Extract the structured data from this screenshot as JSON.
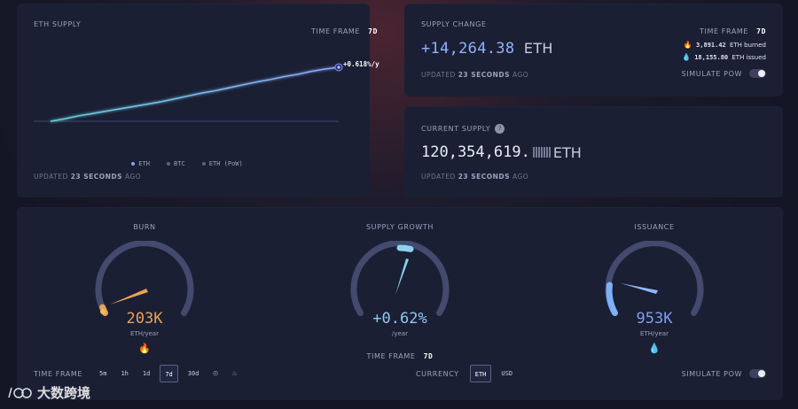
{
  "supply_card": {
    "title": "ETH SUPPLY",
    "timeframe_label": "TIME FRAME",
    "timeframe_value": "7d",
    "growth_annotation": "+0.618%/y",
    "legend": [
      "ETH",
      "BTC",
      "ETH (PoW)"
    ],
    "updated_prefix": "UPDATED",
    "updated_value": "23 SECONDS",
    "updated_suffix": "AGO"
  },
  "change_card": {
    "title": "SUPPLY CHANGE",
    "timeframe_label": "TIME FRAME",
    "timeframe_value": "7d",
    "value": "+14,264.38",
    "unit": "ETH",
    "burned_value": "3,891.42",
    "burned_label": "ETH burned",
    "issued_value": "18,155.80",
    "issued_label": "ETH issued",
    "updated_prefix": "UPDATED",
    "updated_value": "23 SECONDS",
    "updated_suffix": "AGO",
    "simulate_label": "SIMULATE PoW"
  },
  "current_card": {
    "title": "CURRENT SUPPLY",
    "value": "120,354,619.",
    "unit": "ETH",
    "updated_prefix": "UPDATED",
    "updated_value": "23 SECONDS",
    "updated_suffix": "AGO"
  },
  "gauges": {
    "burn": {
      "title": "BURN",
      "value": "203K",
      "unit": "ETH/year",
      "color": "#e8a05a"
    },
    "growth": {
      "title": "SUPPLY GROWTH",
      "value": "+0.62%",
      "unit": "/year",
      "timeframe_label": "TIME FRAME",
      "timeframe_value": "7d",
      "color": "#7fd0ee"
    },
    "issuance": {
      "title": "ISSUANCE",
      "value": "953K",
      "unit": "ETH/year",
      "color": "#6fa6f0"
    }
  },
  "footer": {
    "timeframe_label": "TIME FRAME",
    "timeframes": [
      "5m",
      "1h",
      "1d",
      "7d",
      "30d"
    ],
    "active_timeframe": "7d",
    "currency_label": "CURRENCY",
    "currencies": [
      "ETH",
      "USD"
    ],
    "active_currency": "ETH",
    "simulate_label": "SIMULATE PoW"
  },
  "watermark": {
    "text": "大数跨境"
  },
  "chart_data": {
    "type": "line",
    "title": "ETH SUPPLY",
    "xlabel": "",
    "ylabel": "",
    "series": [
      {
        "name": "ETH",
        "values": [
          0,
          4,
          9,
          13,
          17,
          21,
          25,
          29,
          33,
          38,
          43,
          48,
          52,
          57,
          62,
          67,
          71,
          76,
          80,
          85,
          89,
          92
        ]
      }
    ],
    "annotation": "+0.618%/y",
    "legend_position": "bottom-center",
    "grid": false
  }
}
